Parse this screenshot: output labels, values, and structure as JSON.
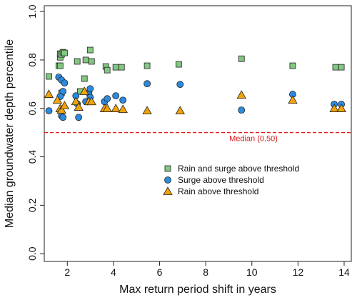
{
  "chart_data": {
    "type": "scatter",
    "x_label": "Max return period shift in years",
    "y_label": "Median groundwater depth percentile",
    "xlim": [
      1.0,
      14.31
    ],
    "ylim": [
      -0.032,
      1.024
    ],
    "xticks": [
      2,
      4,
      6,
      8,
      10,
      12,
      14
    ],
    "yticks": [
      {
        "value": 0.0,
        "label": "0.0"
      },
      0.2,
      0.4,
      0.6,
      0.8,
      {
        "value": 1.0,
        "label": "1.0"
      }
    ],
    "hline": {
      "value": 0.5,
      "label": "Median (0.50)",
      "color": "#e0191c"
    },
    "series": [
      {
        "name": "Rain and surge above threshold",
        "color": "#82c882",
        "marker": "square",
        "x": [
          1.2,
          1.63,
          1.69,
          1.69,
          1.75,
          1.81,
          1.88,
          1.69,
          1.75,
          2.43,
          2.56,
          2.74,
          2.8,
          2.99,
          3.05,
          3.67,
          3.73,
          4.1,
          4.35,
          5.46,
          6.83,
          9.55,
          11.77,
          13.63,
          13.88
        ],
        "values": [
          0.732,
          0.776,
          0.811,
          0.826,
          0.823,
          0.832,
          0.829,
          0.776,
          0.664,
          0.794,
          0.67,
          0.723,
          0.8,
          0.841,
          0.794,
          0.773,
          0.758,
          0.77,
          0.77,
          0.776,
          0.782,
          0.805,
          0.776,
          0.77,
          0.77
        ]
      },
      {
        "name": "Surge above threshold",
        "color": "#2a8be0",
        "marker": "circle",
        "x": [
          1.2,
          1.63,
          1.75,
          1.81,
          1.88,
          1.69,
          1.75,
          1.81,
          2.37,
          2.49,
          2.43,
          2.8,
          2.93,
          2.99,
          2.99,
          3.61,
          3.73,
          4.1,
          4.41,
          5.46,
          6.89,
          9.55,
          11.77,
          13.57,
          13.88
        ],
        "values": [
          0.59,
          0.729,
          0.717,
          0.67,
          0.705,
          0.649,
          0.569,
          0.563,
          0.652,
          0.563,
          0.619,
          0.628,
          0.664,
          0.681,
          0.646,
          0.628,
          0.64,
          0.652,
          0.634,
          0.702,
          0.699,
          0.593,
          0.658,
          0.617,
          0.617
        ]
      },
      {
        "name": "Rain above threshold",
        "color": "#f0a30a",
        "marker": "triangle",
        "x": [
          1.2,
          1.57,
          1.69,
          1.75,
          1.88,
          2.37,
          2.49,
          2.74,
          2.93,
          3.05,
          3.61,
          3.73,
          4.1,
          4.41,
          5.46,
          6.89,
          9.55,
          11.77,
          13.57,
          13.88
        ],
        "values": [
          0.658,
          0.634,
          0.599,
          0.593,
          0.611,
          0.628,
          0.605,
          0.67,
          0.628,
          0.628,
          0.599,
          0.599,
          0.599,
          0.596,
          0.59,
          0.59,
          0.655,
          0.634,
          0.599,
          0.599
        ]
      }
    ],
    "legend_position": "center-right"
  }
}
